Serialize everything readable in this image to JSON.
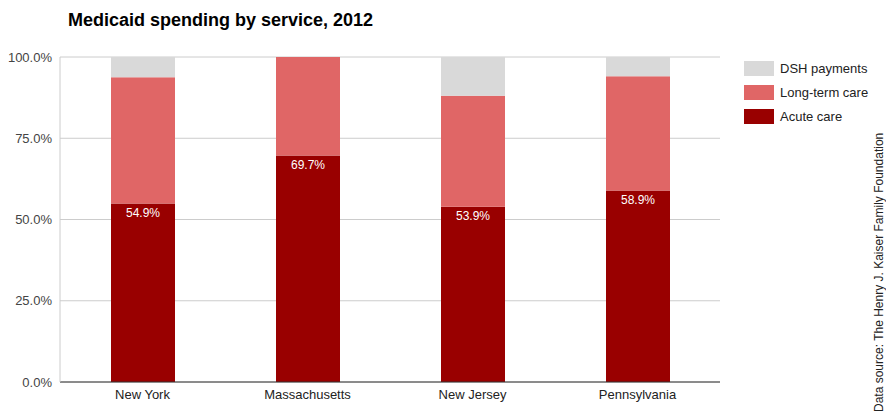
{
  "chart_data": {
    "type": "bar",
    "title": "Medicaid spending by service, 2012",
    "source": "Data source: The Henry J. Kaiser Family Foundation",
    "categories": [
      "New York",
      "Massachusetts",
      "New Jersey",
      "Pennsylvania"
    ],
    "stacked": true,
    "grid": true,
    "legend": "top-right",
    "ylim": [
      0,
      100
    ],
    "yticks": [
      {
        "value": 0,
        "label": "0.0%"
      },
      {
        "value": 25,
        "label": "25.0%"
      },
      {
        "value": 50,
        "label": "50.0%"
      },
      {
        "value": 75,
        "label": "75.0%"
      },
      {
        "value": 100,
        "label": "100.0%"
      }
    ],
    "series": [
      {
        "name": "Acute care",
        "color": "#990000",
        "values": [
          54.9,
          69.7,
          53.9,
          58.9
        ],
        "data_labels": true,
        "value_labels": [
          "54.9%",
          "69.7%",
          "53.9%",
          "58.9%"
        ]
      },
      {
        "name": "Long-term care",
        "color": "#e06666",
        "values": [
          38.9,
          30.3,
          34.2,
          35.2
        ]
      },
      {
        "name": "DSH payments",
        "color": "#d9d9d9",
        "values": [
          6.2,
          0,
          11.9,
          5.9
        ]
      }
    ]
  }
}
